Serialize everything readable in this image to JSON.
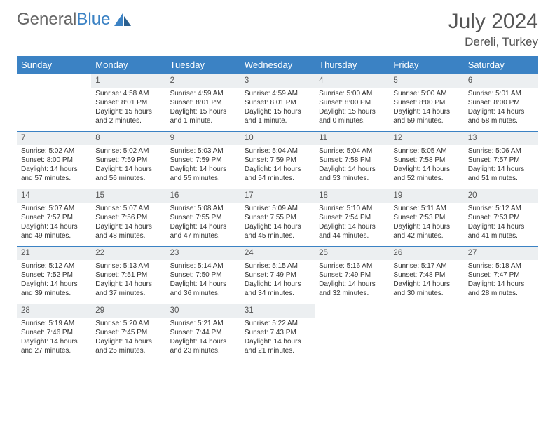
{
  "logo": {
    "text1": "General",
    "text2": "Blue"
  },
  "title": "July 2024",
  "location": "Dereli, Turkey",
  "daynames": [
    "Sunday",
    "Monday",
    "Tuesday",
    "Wednesday",
    "Thursday",
    "Friday",
    "Saturday"
  ],
  "colors": {
    "header_bg": "#3b82c4",
    "daynum_bg": "#eceff1",
    "row_border": "#3b82c4"
  },
  "weeks": [
    [
      null,
      {
        "n": "1",
        "l": [
          "Sunrise: 4:58 AM",
          "Sunset: 8:01 PM",
          "Daylight: 15 hours",
          "and 2 minutes."
        ]
      },
      {
        "n": "2",
        "l": [
          "Sunrise: 4:59 AM",
          "Sunset: 8:01 PM",
          "Daylight: 15 hours",
          "and 1 minute."
        ]
      },
      {
        "n": "3",
        "l": [
          "Sunrise: 4:59 AM",
          "Sunset: 8:01 PM",
          "Daylight: 15 hours",
          "and 1 minute."
        ]
      },
      {
        "n": "4",
        "l": [
          "Sunrise: 5:00 AM",
          "Sunset: 8:00 PM",
          "Daylight: 15 hours",
          "and 0 minutes."
        ]
      },
      {
        "n": "5",
        "l": [
          "Sunrise: 5:00 AM",
          "Sunset: 8:00 PM",
          "Daylight: 14 hours",
          "and 59 minutes."
        ]
      },
      {
        "n": "6",
        "l": [
          "Sunrise: 5:01 AM",
          "Sunset: 8:00 PM",
          "Daylight: 14 hours",
          "and 58 minutes."
        ]
      }
    ],
    [
      {
        "n": "7",
        "l": [
          "Sunrise: 5:02 AM",
          "Sunset: 8:00 PM",
          "Daylight: 14 hours",
          "and 57 minutes."
        ]
      },
      {
        "n": "8",
        "l": [
          "Sunrise: 5:02 AM",
          "Sunset: 7:59 PM",
          "Daylight: 14 hours",
          "and 56 minutes."
        ]
      },
      {
        "n": "9",
        "l": [
          "Sunrise: 5:03 AM",
          "Sunset: 7:59 PM",
          "Daylight: 14 hours",
          "and 55 minutes."
        ]
      },
      {
        "n": "10",
        "l": [
          "Sunrise: 5:04 AM",
          "Sunset: 7:59 PM",
          "Daylight: 14 hours",
          "and 54 minutes."
        ]
      },
      {
        "n": "11",
        "l": [
          "Sunrise: 5:04 AM",
          "Sunset: 7:58 PM",
          "Daylight: 14 hours",
          "and 53 minutes."
        ]
      },
      {
        "n": "12",
        "l": [
          "Sunrise: 5:05 AM",
          "Sunset: 7:58 PM",
          "Daylight: 14 hours",
          "and 52 minutes."
        ]
      },
      {
        "n": "13",
        "l": [
          "Sunrise: 5:06 AM",
          "Sunset: 7:57 PM",
          "Daylight: 14 hours",
          "and 51 minutes."
        ]
      }
    ],
    [
      {
        "n": "14",
        "l": [
          "Sunrise: 5:07 AM",
          "Sunset: 7:57 PM",
          "Daylight: 14 hours",
          "and 49 minutes."
        ]
      },
      {
        "n": "15",
        "l": [
          "Sunrise: 5:07 AM",
          "Sunset: 7:56 PM",
          "Daylight: 14 hours",
          "and 48 minutes."
        ]
      },
      {
        "n": "16",
        "l": [
          "Sunrise: 5:08 AM",
          "Sunset: 7:55 PM",
          "Daylight: 14 hours",
          "and 47 minutes."
        ]
      },
      {
        "n": "17",
        "l": [
          "Sunrise: 5:09 AM",
          "Sunset: 7:55 PM",
          "Daylight: 14 hours",
          "and 45 minutes."
        ]
      },
      {
        "n": "18",
        "l": [
          "Sunrise: 5:10 AM",
          "Sunset: 7:54 PM",
          "Daylight: 14 hours",
          "and 44 minutes."
        ]
      },
      {
        "n": "19",
        "l": [
          "Sunrise: 5:11 AM",
          "Sunset: 7:53 PM",
          "Daylight: 14 hours",
          "and 42 minutes."
        ]
      },
      {
        "n": "20",
        "l": [
          "Sunrise: 5:12 AM",
          "Sunset: 7:53 PM",
          "Daylight: 14 hours",
          "and 41 minutes."
        ]
      }
    ],
    [
      {
        "n": "21",
        "l": [
          "Sunrise: 5:12 AM",
          "Sunset: 7:52 PM",
          "Daylight: 14 hours",
          "and 39 minutes."
        ]
      },
      {
        "n": "22",
        "l": [
          "Sunrise: 5:13 AM",
          "Sunset: 7:51 PM",
          "Daylight: 14 hours",
          "and 37 minutes."
        ]
      },
      {
        "n": "23",
        "l": [
          "Sunrise: 5:14 AM",
          "Sunset: 7:50 PM",
          "Daylight: 14 hours",
          "and 36 minutes."
        ]
      },
      {
        "n": "24",
        "l": [
          "Sunrise: 5:15 AM",
          "Sunset: 7:49 PM",
          "Daylight: 14 hours",
          "and 34 minutes."
        ]
      },
      {
        "n": "25",
        "l": [
          "Sunrise: 5:16 AM",
          "Sunset: 7:49 PM",
          "Daylight: 14 hours",
          "and 32 minutes."
        ]
      },
      {
        "n": "26",
        "l": [
          "Sunrise: 5:17 AM",
          "Sunset: 7:48 PM",
          "Daylight: 14 hours",
          "and 30 minutes."
        ]
      },
      {
        "n": "27",
        "l": [
          "Sunrise: 5:18 AM",
          "Sunset: 7:47 PM",
          "Daylight: 14 hours",
          "and 28 minutes."
        ]
      }
    ],
    [
      {
        "n": "28",
        "l": [
          "Sunrise: 5:19 AM",
          "Sunset: 7:46 PM",
          "Daylight: 14 hours",
          "and 27 minutes."
        ]
      },
      {
        "n": "29",
        "l": [
          "Sunrise: 5:20 AM",
          "Sunset: 7:45 PM",
          "Daylight: 14 hours",
          "and 25 minutes."
        ]
      },
      {
        "n": "30",
        "l": [
          "Sunrise: 5:21 AM",
          "Sunset: 7:44 PM",
          "Daylight: 14 hours",
          "and 23 minutes."
        ]
      },
      {
        "n": "31",
        "l": [
          "Sunrise: 5:22 AM",
          "Sunset: 7:43 PM",
          "Daylight: 14 hours",
          "and 21 minutes."
        ]
      },
      null,
      null,
      null
    ]
  ]
}
